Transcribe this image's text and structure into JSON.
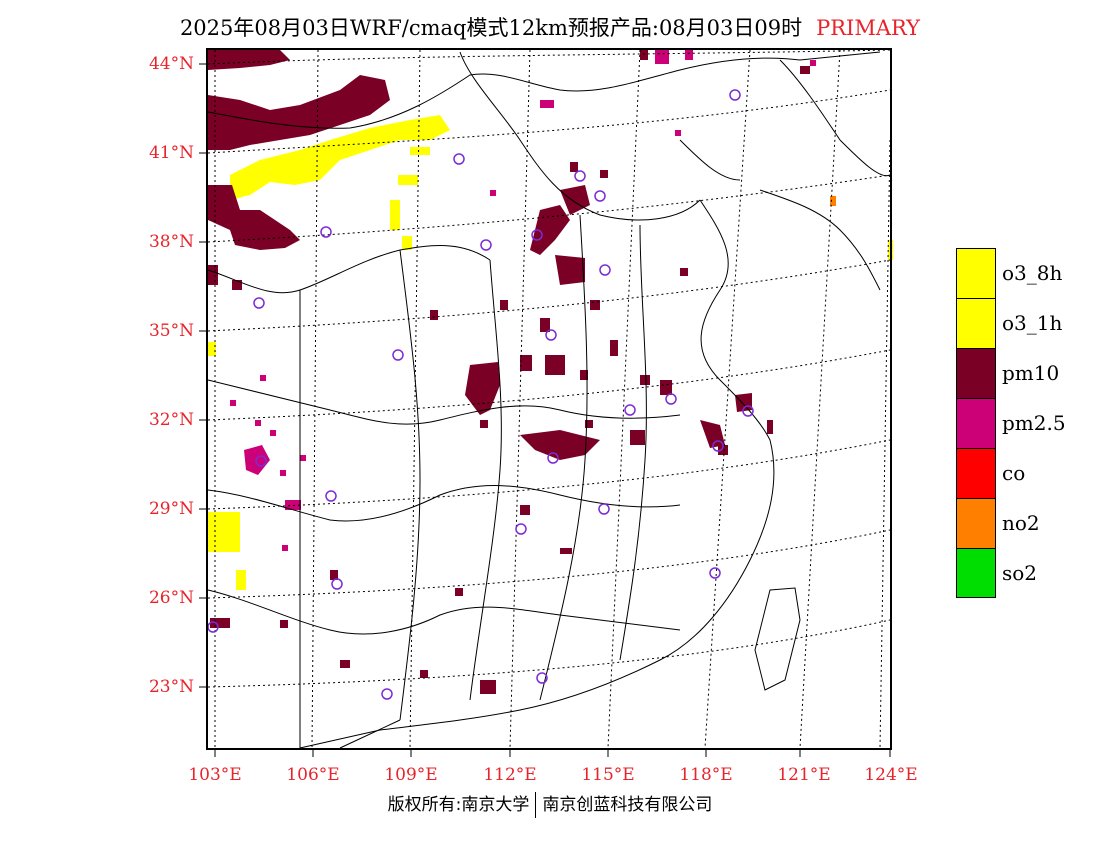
{
  "title": {
    "main": "2025年08月03日WRF/cmaq模式12km预报产品:08月03日09时",
    "tag": "PRIMARY"
  },
  "map": {
    "lat_labels": [
      "44°N",
      "41°N",
      "38°N",
      "35°N",
      "32°N",
      "29°N",
      "26°N",
      "23°N"
    ],
    "lon_labels": [
      "103°E",
      "106°E",
      "109°E",
      "112°E",
      "115°E",
      "118°E",
      "121°E",
      "124°E"
    ]
  },
  "legend": {
    "items": [
      {
        "label": "o3_8h",
        "color": "#ffff00"
      },
      {
        "label": "o3_1h",
        "color": "#ffff00"
      },
      {
        "label": "pm10",
        "color": "#7a0026"
      },
      {
        "label": "pm2.5",
        "color": "#cc0077"
      },
      {
        "label": "co",
        "color": "#ff0000"
      },
      {
        "label": "no2",
        "color": "#ff7f00"
      },
      {
        "label": "so2",
        "color": "#00dd00"
      }
    ]
  },
  "footer": {
    "left": "版权所有:南京大学",
    "right": "南京创蓝科技有限公司"
  },
  "colors": {
    "label_red": "#e8232a",
    "pm10": "#7a0026",
    "pm25": "#cc0077",
    "o3": "#ffff00",
    "no2": "#ff7f00",
    "station": "#7b2cd6"
  }
}
